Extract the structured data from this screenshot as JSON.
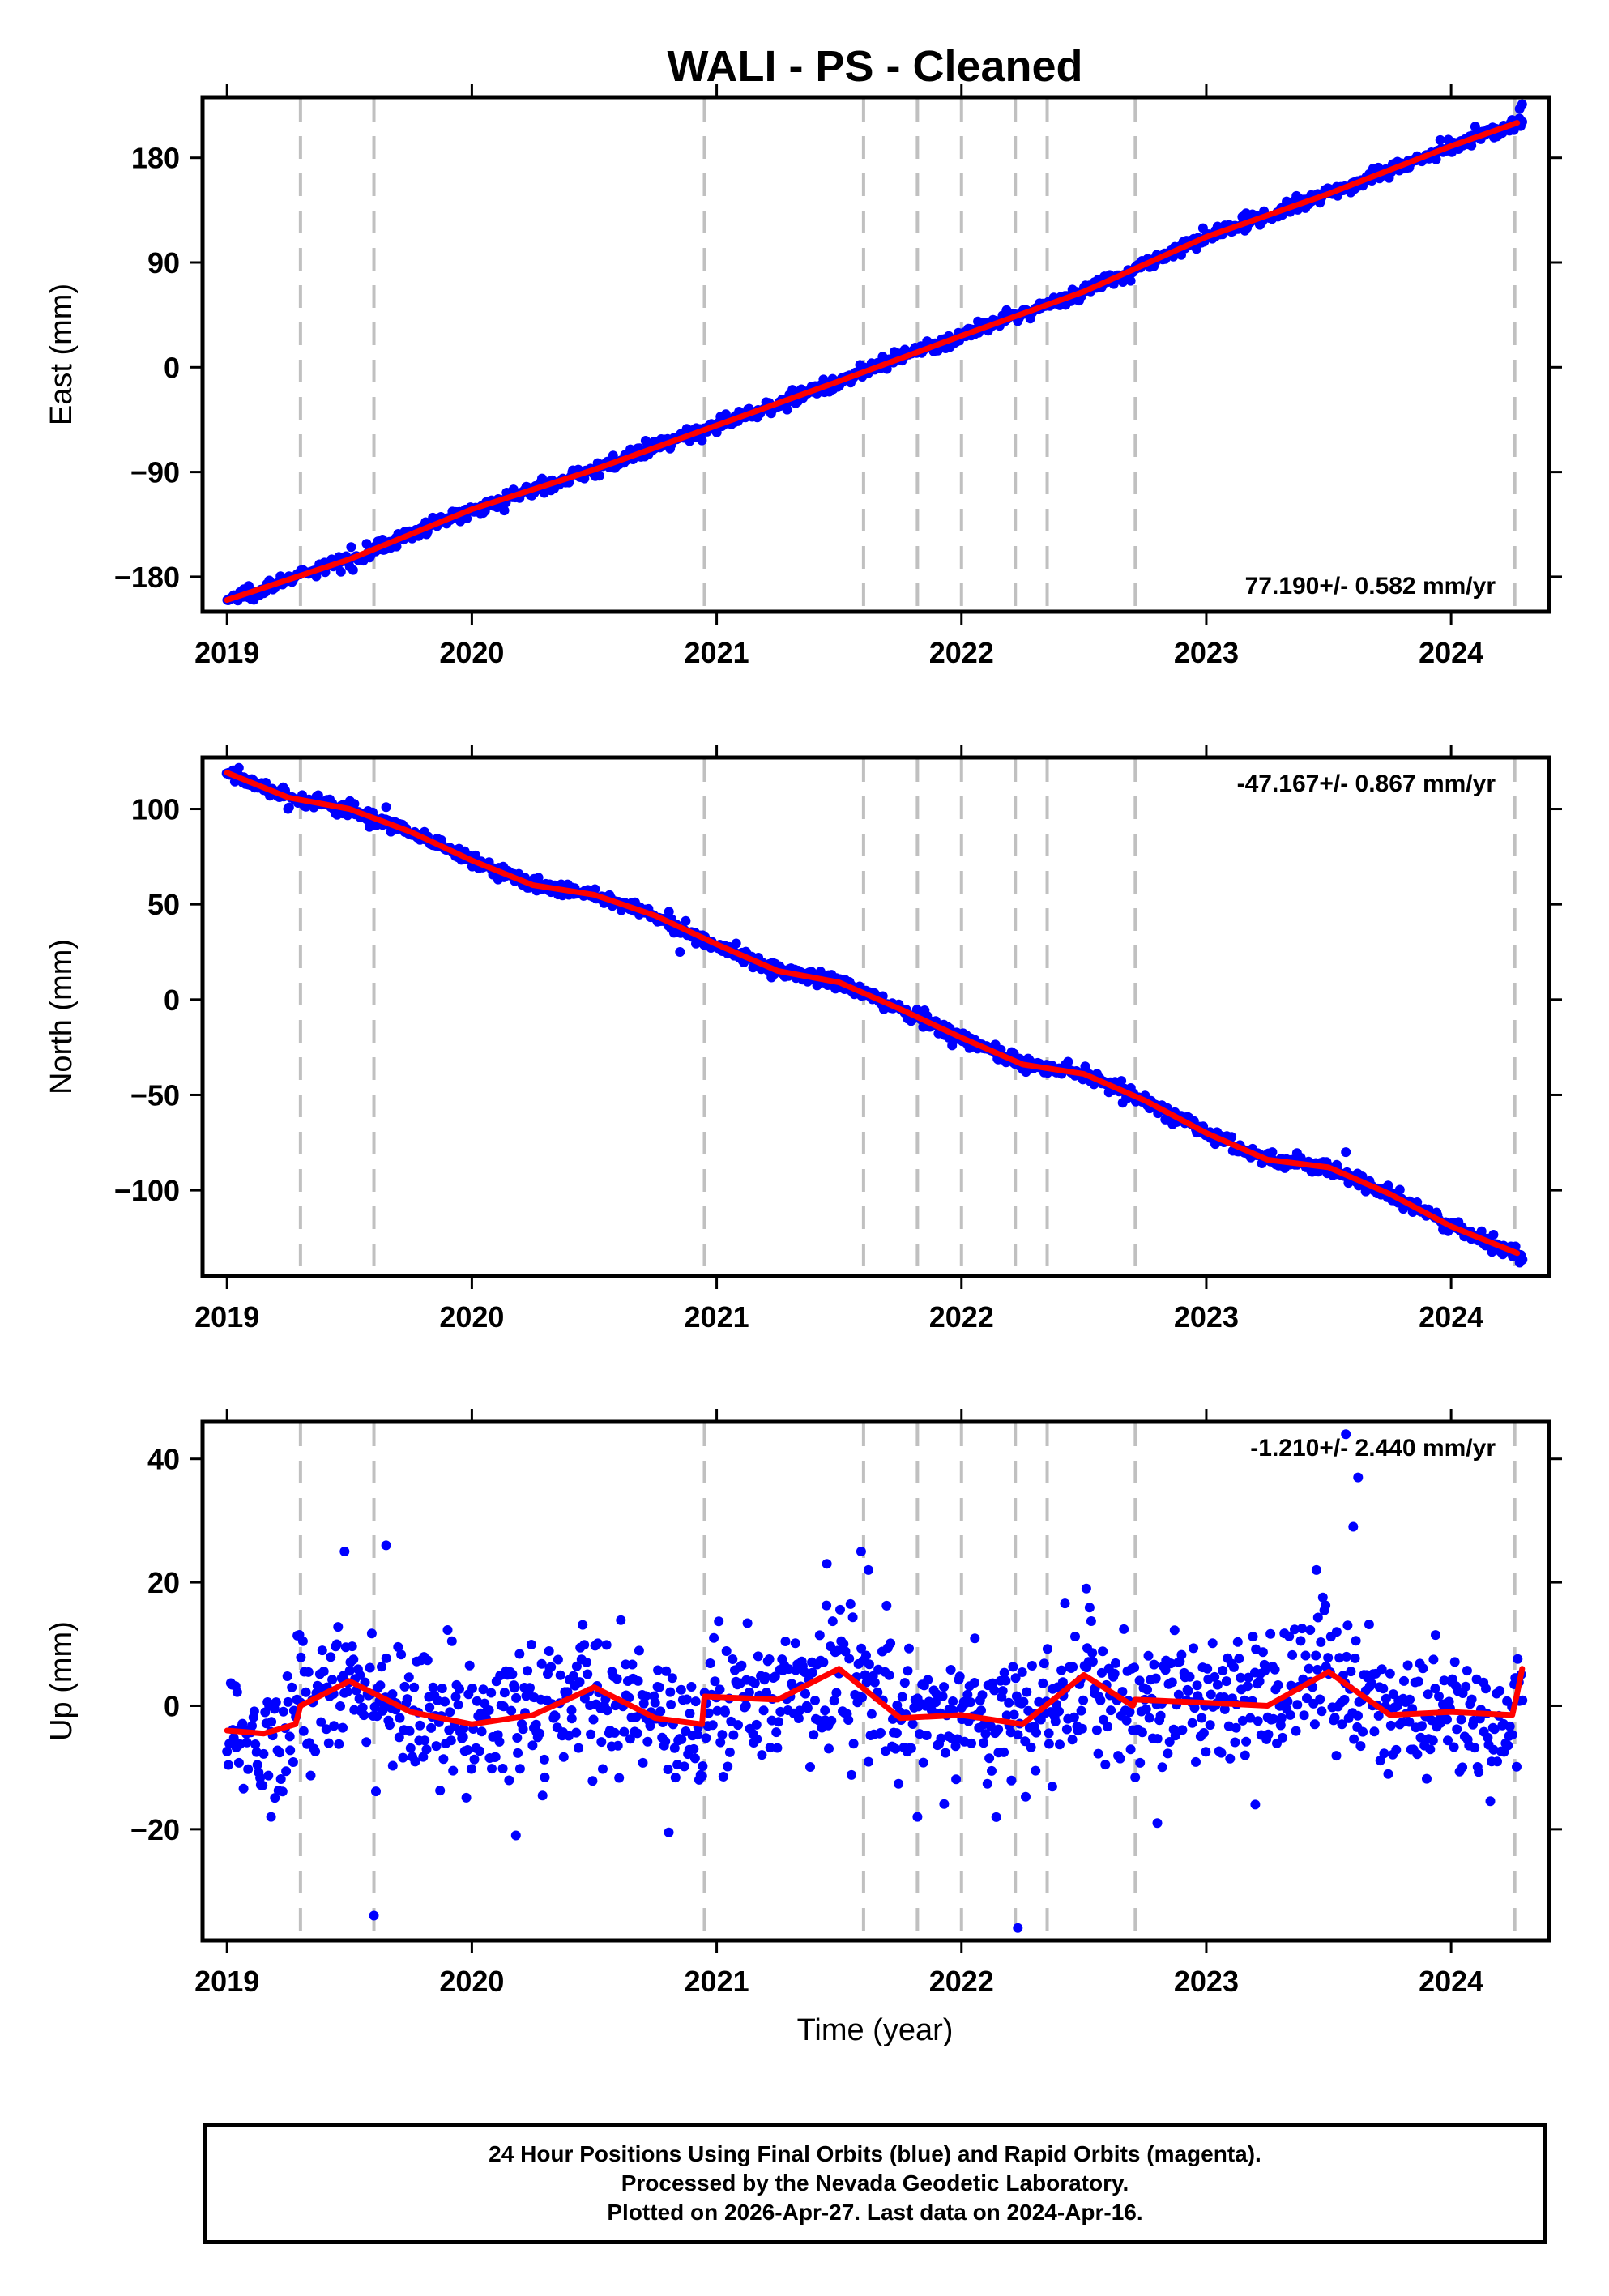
{
  "title": "WALI  - PS - Cleaned",
  "xlabel": "Time (year)",
  "footer": {
    "line1": "24 Hour Positions Using Final Orbits (blue) and Rapid Orbits (magenta).",
    "line2": "Processed by the Nevada Geodetic Laboratory.",
    "line3": "Plotted on 2026-Apr-27. Last data on 2024-Apr-16."
  },
  "colors": {
    "points": "#0000ff",
    "model": "#ff0000",
    "breaks": "#c0c0c0",
    "frame": "#000000"
  },
  "chart_data": [
    {
      "type": "scatter",
      "name": "east",
      "ylabel": "East (mm)",
      "rate_label": "77.190+/- 0.582 mm/yr",
      "xlim": [
        2018.9,
        2024.4
      ],
      "ylim": [
        -210,
        232
      ],
      "xticks": [
        2019,
        2020,
        2021,
        2022,
        2023,
        2024
      ],
      "yticks": [
        -180,
        -90,
        0,
        90,
        180
      ],
      "breaks": [
        2019.3,
        2019.6,
        2020.95,
        2021.6,
        2021.82,
        2022.0,
        2022.22,
        2022.35,
        2022.71,
        2024.26
      ],
      "model": {
        "x": [
          2019.0,
          2019.5,
          2020.0,
          2020.5,
          2021.0,
          2021.5,
          2022.0,
          2022.5,
          2023.0,
          2023.5,
          2024.0,
          2024.27
        ],
        "y": [
          -200,
          -165,
          -122,
          -88,
          -50,
          -12,
          27,
          65,
          112,
          149,
          190,
          210
        ]
      },
      "scatter": {
        "start": 2019.0,
        "end": 2024.29,
        "n": 1000,
        "noise": 3,
        "outliers": [
          [
            2024.28,
            222
          ],
          [
            2024.29,
            226
          ]
        ]
      }
    },
    {
      "type": "scatter",
      "name": "north",
      "ylabel": "North (mm)",
      "rate_label": "-47.167+/- 0.867 mm/yr",
      "xlim": [
        2018.9,
        2024.4
      ],
      "ylim": [
        -145,
        127
      ],
      "xticks": [
        2019,
        2020,
        2021,
        2022,
        2023,
        2024
      ],
      "yticks": [
        -100,
        -50,
        0,
        50,
        100
      ],
      "breaks": [
        2019.3,
        2019.6,
        2020.95,
        2021.6,
        2021.82,
        2022.0,
        2022.22,
        2022.35,
        2022.71,
        2024.26
      ],
      "model": {
        "x": [
          2019.0,
          2019.25,
          2019.5,
          2019.75,
          2020.0,
          2020.25,
          2020.5,
          2020.75,
          2021.0,
          2021.25,
          2021.5,
          2021.75,
          2022.0,
          2022.25,
          2022.5,
          2022.75,
          2023.0,
          2023.25,
          2023.5,
          2023.75,
          2024.0,
          2024.27
        ],
        "y": [
          119,
          106,
          100,
          88,
          73,
          60,
          55,
          44,
          29,
          15,
          9,
          -5,
          -20,
          -34,
          -39,
          -53,
          -70,
          -84,
          -88,
          -102,
          -119,
          -133
        ]
      },
      "scatter": {
        "start": 2019.0,
        "end": 2024.29,
        "n": 1000,
        "noise": 2,
        "outliers": [
          [
            2019.65,
            101
          ],
          [
            2020.85,
            25
          ],
          [
            2023.57,
            -80
          ],
          [
            2024.28,
            -138
          ]
        ]
      }
    },
    {
      "type": "scatter",
      "name": "up",
      "ylabel": "Up (mm)",
      "rate_label": "-1.210+/- 2.440 mm/yr",
      "xlim": [
        2018.9,
        2024.4
      ],
      "ylim": [
        -38,
        46
      ],
      "xticks": [
        2019,
        2020,
        2021,
        2022,
        2023,
        2024
      ],
      "yticks": [
        -20,
        0,
        20,
        40
      ],
      "breaks": [
        2019.3,
        2019.6,
        2020.95,
        2021.6,
        2021.82,
        2022.0,
        2022.22,
        2022.35,
        2022.71,
        2024.26
      ],
      "model": {
        "x": [
          2019.0,
          2019.15,
          2019.28,
          2019.3,
          2019.5,
          2019.75,
          2020.0,
          2020.25,
          2020.5,
          2020.75,
          2020.94,
          2020.95,
          2021.25,
          2021.5,
          2021.75,
          2022.0,
          2022.25,
          2022.5,
          2022.7,
          2022.71,
          2023.0,
          2023.25,
          2023.5,
          2023.75,
          2024.0,
          2024.25,
          2024.27,
          2024.29
        ],
        "y": [
          -4,
          -4.5,
          -3,
          0,
          4,
          -1,
          -3,
          -1.5,
          3,
          -2,
          -3,
          1.5,
          1,
          6,
          -2,
          -1.5,
          -3,
          5,
          0,
          1,
          0.5,
          0,
          5.5,
          -1.5,
          -1,
          -1.5,
          2,
          6
        ]
      },
      "scatter": {
        "start": 2019.0,
        "end": 2024.29,
        "n": 1100,
        "noise": 5.5,
        "outliers": [
          [
            2019.6,
            -34
          ],
          [
            2022.23,
            -36
          ],
          [
            2023.57,
            44
          ],
          [
            2023.62,
            37
          ],
          [
            2023.6,
            29
          ],
          [
            2020.18,
            -21
          ],
          [
            2019.65,
            26
          ],
          [
            2019.48,
            25
          ],
          [
            2021.59,
            25
          ],
          [
            2021.62,
            22
          ],
          [
            2021.45,
            23
          ],
          [
            2023.45,
            22
          ],
          [
            2022.51,
            19
          ],
          [
            2022.8,
            -19
          ],
          [
            2023.2,
            -16
          ],
          [
            2019.18,
            -18
          ],
          [
            2021.82,
            -18
          ]
        ]
      }
    }
  ]
}
